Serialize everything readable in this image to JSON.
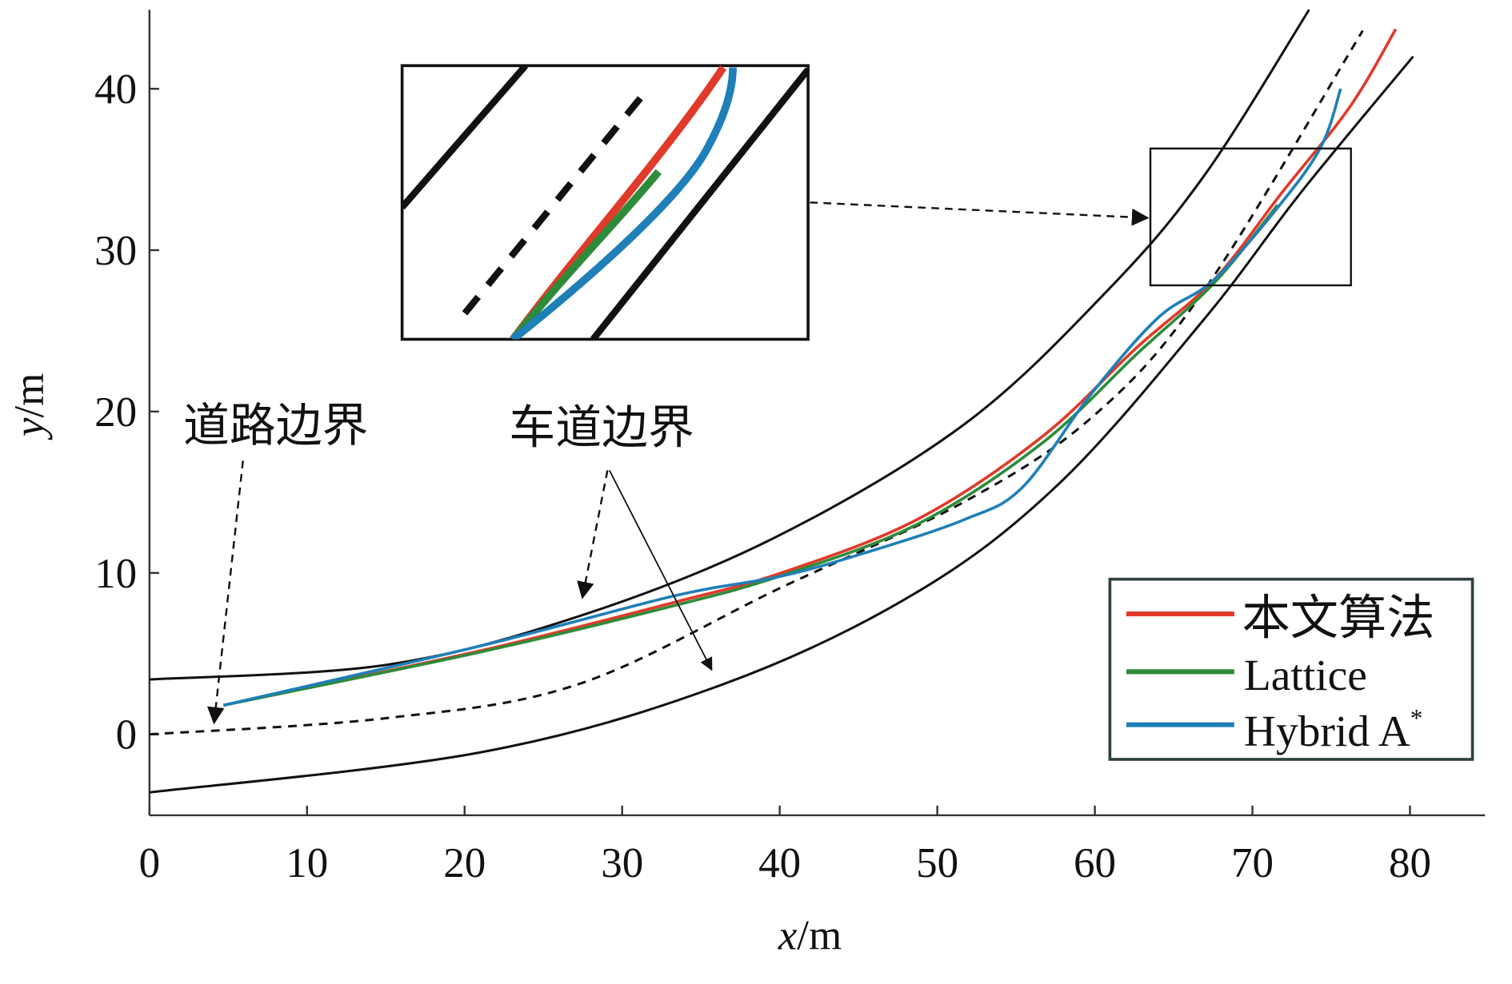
{
  "chart_data": {
    "type": "line",
    "xlabel_var": "x",
    "xlabel_unit": "/m",
    "ylabel_var": "y",
    "ylabel_unit": "/m",
    "xlim": [
      0,
      85
    ],
    "ylim": [
      -5,
      45
    ],
    "xticks": [
      "0",
      "10",
      "20",
      "30",
      "40",
      "50",
      "60",
      "70",
      "80"
    ],
    "yticks": [
      "0",
      "10",
      "20",
      "30",
      "40"
    ],
    "grid": false,
    "legend_position": "bottom-right",
    "annotations": {
      "road_boundary": "道路边界",
      "lane_boundary": "车道边界"
    },
    "boundaries": {
      "road_upper": [
        [
          0,
          3.4
        ],
        [
          15,
          4.3
        ],
        [
          27.2,
          7.3
        ],
        [
          39.5,
          12.1
        ],
        [
          51.7,
          19.2
        ],
        [
          60.9,
          27.6
        ],
        [
          67,
          34.7
        ],
        [
          73.6,
          44.9
        ]
      ],
      "road_lower": [
        [
          0,
          -3.6
        ],
        [
          21.1,
          -1.1
        ],
        [
          36.4,
          3.1
        ],
        [
          48.7,
          8.8
        ],
        [
          57.8,
          15.6
        ],
        [
          67,
          25.8
        ],
        [
          73.1,
          33.6
        ],
        [
          80.2,
          42
        ]
      ],
      "lane_center": [
        [
          0,
          0
        ],
        [
          15,
          1.0
        ],
        [
          27.2,
          3.1
        ],
        [
          40.1,
          9.1
        ],
        [
          51.7,
          14.4
        ],
        [
          60,
          19.8
        ],
        [
          67,
          27.6
        ],
        [
          77,
          43.6
        ]
      ]
    },
    "series": [
      {
        "name": "本文算法",
        "color": "#e03a2a",
        "points": [
          [
            4.7,
            1.8
          ],
          [
            21.1,
            5.2
          ],
          [
            33.4,
            8.2
          ],
          [
            40.1,
            10.0
          ],
          [
            48.7,
            13.3
          ],
          [
            56.6,
            18.4
          ],
          [
            62.7,
            24.0
          ],
          [
            67.6,
            28.2
          ],
          [
            71.9,
            33.6
          ],
          [
            76.2,
            38.9
          ],
          [
            79.1,
            43.7
          ]
        ]
      },
      {
        "name": "Lattice",
        "color": "#2e8b3a",
        "points": [
          [
            4.7,
            1.8
          ],
          [
            21.0,
            5.1
          ],
          [
            33.0,
            7.9
          ],
          [
            40.0,
            9.8
          ],
          [
            48.7,
            13.0
          ],
          [
            56.6,
            18.0
          ],
          [
            62.7,
            23.6
          ],
          [
            67.6,
            28.0
          ],
          [
            71.6,
            32.8
          ]
        ]
      },
      {
        "name": "Hybrid A",
        "name_sup": "*",
        "color": "#1f7fb8",
        "points": [
          [
            4.7,
            1.8
          ],
          [
            21.1,
            5.5
          ],
          [
            33.4,
            8.6
          ],
          [
            40.1,
            9.8
          ],
          [
            45.6,
            11.3
          ],
          [
            51.7,
            13.3
          ],
          [
            55.4,
            15.3
          ],
          [
            59.7,
            21.0
          ],
          [
            64.0,
            25.8
          ],
          [
            67.6,
            28.2
          ],
          [
            71.9,
            33.0
          ],
          [
            74.4,
            36.5
          ],
          [
            75.6,
            40.0
          ]
        ]
      }
    ]
  }
}
